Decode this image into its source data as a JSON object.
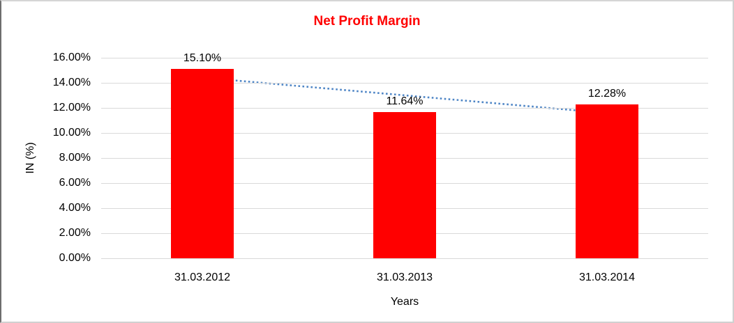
{
  "chart_data": {
    "type": "bar",
    "title": "Net Profit Margin",
    "title_color": "#ff0000",
    "categories": [
      "31.03.2012",
      "31.03.2013",
      "31.03.2014"
    ],
    "values": [
      15.1,
      11.64,
      12.28
    ],
    "value_labels": [
      "15.10%",
      "11.64%",
      "12.28%"
    ],
    "xlabel": "Years",
    "ylabel": "IN (%)",
    "ylim": [
      0,
      16
    ],
    "ytick_step": 2,
    "ytick_labels": [
      "0.00%",
      "2.00%",
      "4.00%",
      "6.00%",
      "8.00%",
      "10.00%",
      "12.00%",
      "14.00%",
      "16.00%"
    ],
    "grid": true,
    "gridline_color": "#d9d9d9",
    "bar_color": "#ff0000",
    "legend": "none",
    "trendline": {
      "style": "dotted",
      "color": "#4f86c6",
      "start_value": 14.42,
      "end_value": 11.6
    }
  }
}
